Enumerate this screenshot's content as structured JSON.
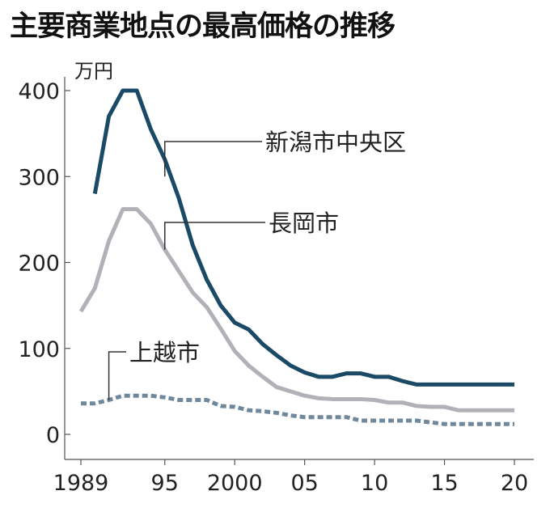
{
  "chart_data": {
    "type": "line",
    "title": "主要商業地点の最高価格の推移",
    "ylabel": "万円",
    "xlabel": "",
    "ylim": [
      0,
      400
    ],
    "xlim": [
      1989,
      2020
    ],
    "yticks": [
      0,
      100,
      200,
      300,
      400
    ],
    "xticks": [
      {
        "value": 1989,
        "label": "1989"
      },
      {
        "value": 1995,
        "label": "95"
      },
      {
        "value": 2000,
        "label": "2000"
      },
      {
        "value": 2005,
        "label": "05"
      },
      {
        "value": 2010,
        "label": "10"
      },
      {
        "value": 2015,
        "label": "15"
      },
      {
        "value": 2020,
        "label": "20"
      }
    ],
    "grid": false,
    "series": [
      {
        "name": "新潟市中央区",
        "color": "#1b4a66",
        "dashed": false,
        "x": [
          1990,
          1991,
          1992,
          1993,
          1994,
          1995,
          1996,
          1997,
          1998,
          1999,
          2000,
          2001,
          2002,
          2003,
          2004,
          2005,
          2006,
          2007,
          2008,
          2009,
          2010,
          2011,
          2012,
          2013,
          2014,
          2015,
          2016,
          2017,
          2018,
          2019,
          2020
        ],
        "values": [
          280,
          370,
          400,
          400,
          355,
          320,
          275,
          220,
          180,
          150,
          130,
          122,
          105,
          92,
          80,
          72,
          67,
          67,
          71,
          71,
          67,
          67,
          62,
          58,
          58,
          58,
          58,
          58,
          58,
          58,
          58
        ]
      },
      {
        "name": "長岡市",
        "color": "#b3b0b8",
        "dashed": false,
        "x": [
          1989,
          1990,
          1991,
          1992,
          1993,
          1994,
          1995,
          1996,
          1997,
          1998,
          1999,
          2000,
          2001,
          2002,
          2003,
          2004,
          2005,
          2006,
          2007,
          2008,
          2009,
          2010,
          2011,
          2012,
          2013,
          2014,
          2015,
          2016,
          2017,
          2018,
          2019,
          2020
        ],
        "values": [
          143,
          170,
          225,
          262,
          262,
          245,
          215,
          190,
          165,
          148,
          123,
          97,
          80,
          67,
          55,
          50,
          45,
          42,
          41,
          41,
          41,
          40,
          37,
          37,
          33,
          32,
          32,
          28,
          28,
          28,
          28,
          28
        ]
      },
      {
        "name": "上越市",
        "color": "#6f889c",
        "dashed": true,
        "x": [
          1989,
          1990,
          1991,
          1992,
          1993,
          1994,
          1995,
          1996,
          1997,
          1998,
          1999,
          2000,
          2001,
          2002,
          2003,
          2004,
          2005,
          2006,
          2007,
          2008,
          2009,
          2010,
          2011,
          2012,
          2013,
          2014,
          2015,
          2016,
          2017,
          2018,
          2019,
          2020
        ],
        "values": [
          36,
          36,
          40,
          45,
          45,
          45,
          43,
          40,
          40,
          40,
          33,
          32,
          28,
          27,
          25,
          22,
          20,
          20,
          20,
          20,
          16,
          16,
          16,
          16,
          16,
          14,
          12,
          12,
          12,
          12,
          12,
          12
        ]
      }
    ]
  }
}
